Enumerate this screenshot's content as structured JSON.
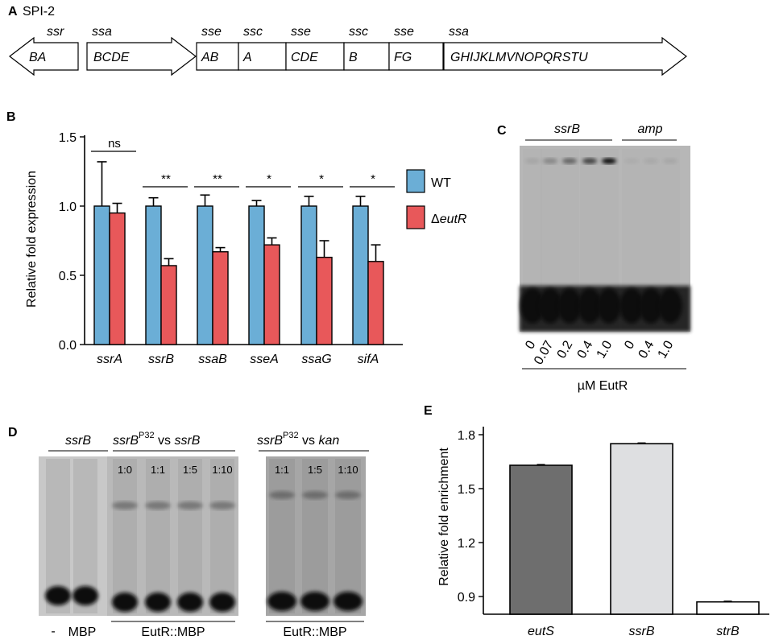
{
  "panel_a": {
    "letter": "A",
    "title": "SPI-2",
    "genes": [
      {
        "operon": "ssr",
        "label": "BA",
        "dir": "left"
      },
      {
        "operon": "ssa",
        "label": "BCDE",
        "dir": "right"
      },
      {
        "operon": "sse",
        "label": "AB",
        "dir": "none"
      },
      {
        "operon": "ssc",
        "label": "A",
        "dir": "none"
      },
      {
        "operon": "sse",
        "label": "CDE",
        "dir": "none"
      },
      {
        "operon": "ssc",
        "label": "B",
        "dir": "none"
      },
      {
        "operon": "sse",
        "label": "FG",
        "dir": "none"
      },
      {
        "operon": "ssa",
        "label": "GHIJKLMVNOPQRSTU",
        "dir": "right"
      }
    ]
  },
  "panel_b": {
    "letter": "B",
    "chart_data": {
      "type": "bar",
      "ylabel": "Relative fold expression",
      "ylim": [
        0,
        1.5
      ],
      "yticks": [
        "0.0",
        "0.5",
        "1.0",
        "1.5"
      ],
      "categories": [
        "ssrA",
        "ssrB",
        "ssaB",
        "sseA",
        "ssaG",
        "sifA"
      ],
      "series": [
        {
          "name": "WT",
          "color": "#6baed6",
          "values": [
            1.0,
            1.0,
            1.0,
            1.0,
            1.0,
            1.0
          ],
          "errors": [
            0.32,
            0.06,
            0.08,
            0.04,
            0.07,
            0.07
          ]
        },
        {
          "name": "ΔeutR",
          "color": "#e8585a",
          "values": [
            0.95,
            0.57,
            0.67,
            0.72,
            0.63,
            0.6
          ],
          "errors": [
            0.07,
            0.05,
            0.03,
            0.05,
            0.12,
            0.12
          ]
        }
      ],
      "significance": [
        "ns",
        "**",
        "**",
        "*",
        "*",
        "*"
      ],
      "legend_position": "right"
    }
  },
  "panel_c": {
    "letter": "C",
    "group_labels": [
      "ssrB",
      "amp"
    ],
    "lane_values": [
      "0",
      "0.07",
      "0.2",
      "0.4",
      "1.0",
      "0",
      "0.4",
      "1.0"
    ],
    "xlabel": "µM EutR"
  },
  "panel_d": {
    "letter": "D",
    "header_1": "ssrB",
    "header_2": {
      "a": "ssrB",
      "sup": "P32",
      "b": " vs ",
      "c": "ssrB"
    },
    "header_3": {
      "a": "ssrB",
      "sup": "P32",
      "b": " vs ",
      "c": "kan"
    },
    "ratios_1": [
      "1:0",
      "1:1",
      "1:5",
      "1:10"
    ],
    "ratios_2": [
      "1:1",
      "1:5",
      "1:10"
    ],
    "bottom": {
      "minus": "-",
      "mbp": "MBP",
      "eutr_1": "EutR::MBP",
      "eutr_2": "EutR::MBP"
    }
  },
  "panel_e": {
    "letter": "E",
    "chart_data": {
      "type": "bar",
      "ylabel": "Relative fold enrichment",
      "ylim": [
        0.8,
        1.8
      ],
      "yticks": [
        "0.9",
        "1.2",
        "1.5",
        "1.8"
      ],
      "categories": [
        "eutS",
        "ssrB",
        "strB"
      ],
      "values": [
        1.63,
        1.75,
        0.87
      ],
      "colors": [
        "#6e6e6e",
        "#dedfe1",
        "#ffffff"
      ]
    }
  }
}
